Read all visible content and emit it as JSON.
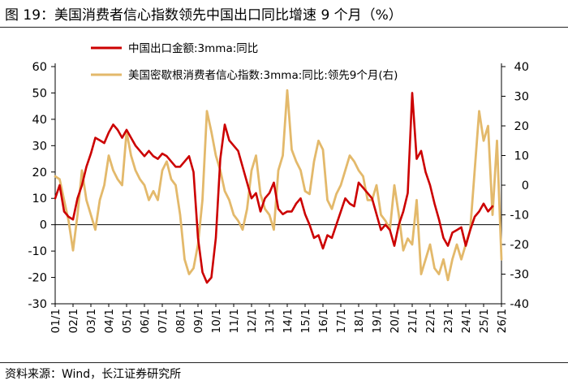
{
  "header": {
    "title": "图 19：美国消费者信心指数领先中国出口同比增速 9 个月（%）"
  },
  "footer": {
    "source": "资料来源：Wind，长江证券研究所"
  },
  "chart_data": {
    "type": "line",
    "colors": {
      "china_exports": "#cc0000",
      "us_confidence": "#e3b96b"
    },
    "legend": {
      "placement": "top-center",
      "entries": [
        "中国出口金额:3mma:同比",
        "美国密歇根消费者信心指数:3mma:同比:领先9个月(右)"
      ]
    },
    "x_tick_labels": [
      "01/1",
      "02/1",
      "03/1",
      "04/1",
      "05/1",
      "06/1",
      "07/1",
      "08/1",
      "09/1",
      "10/1",
      "11/1",
      "12/1",
      "13/1",
      "14/1",
      "15/1",
      "16/1",
      "17/1",
      "18/1",
      "19/1",
      "20/1",
      "21/1",
      "22/1",
      "23/1",
      "24/1",
      "25/1",
      "26/1"
    ],
    "y_left": {
      "ticks": [
        -30,
        -20,
        -10,
        0,
        10,
        20,
        30,
        40,
        50,
        60
      ],
      "range": [
        -30,
        60
      ]
    },
    "y_right": {
      "ticks": [
        -40,
        -30,
        -20,
        -10,
        0,
        10,
        20,
        30,
        40
      ],
      "range": [
        -40,
        40
      ]
    },
    "series": [
      {
        "name": "中国出口金额:3mma:同比",
        "axis": "left",
        "x": [
          2001.0,
          2001.25,
          2001.5,
          2001.75,
          2002.0,
          2002.25,
          2002.5,
          2002.75,
          2003.0,
          2003.25,
          2003.5,
          2003.75,
          2004.0,
          2004.25,
          2004.5,
          2004.75,
          2005.0,
          2005.25,
          2005.5,
          2005.75,
          2006.0,
          2006.25,
          2006.5,
          2006.75,
          2007.0,
          2007.25,
          2007.5,
          2007.75,
          2008.0,
          2008.25,
          2008.5,
          2008.75,
          2009.0,
          2009.25,
          2009.5,
          2009.75,
          2010.0,
          2010.25,
          2010.5,
          2010.75,
          2011.0,
          2011.25,
          2011.5,
          2011.75,
          2012.0,
          2012.25,
          2012.5,
          2012.75,
          2013.0,
          2013.25,
          2013.5,
          2013.75,
          2014.0,
          2014.25,
          2014.5,
          2014.75,
          2015.0,
          2015.25,
          2015.5,
          2015.75,
          2016.0,
          2016.25,
          2016.5,
          2016.75,
          2017.0,
          2017.25,
          2017.5,
          2017.75,
          2018.0,
          2018.25,
          2018.5,
          2018.75,
          2019.0,
          2019.25,
          2019.5,
          2019.75,
          2020.0,
          2020.25,
          2020.5,
          2020.75,
          2021.0,
          2021.25,
          2021.5,
          2021.75,
          2022.0,
          2022.25,
          2022.5,
          2022.75,
          2023.0,
          2023.25,
          2023.5,
          2023.75,
          2024.0,
          2024.25,
          2024.5,
          2024.75,
          2025.0,
          2025.25,
          2025.5
        ],
        "values": [
          10,
          15,
          5,
          3,
          2,
          10,
          15,
          22,
          27,
          33,
          32,
          31,
          35,
          38,
          36,
          33,
          36,
          33,
          30,
          28,
          26,
          28,
          26,
          25,
          27,
          26,
          24,
          22,
          22,
          24,
          26,
          20,
          -5,
          -18,
          -22,
          -20,
          -5,
          25,
          38,
          32,
          30,
          28,
          22,
          16,
          10,
          12,
          5,
          10,
          12,
          16,
          6,
          4,
          5,
          5,
          8,
          10,
          4,
          0,
          -5,
          -4,
          -9,
          -4,
          -5,
          0,
          5,
          10,
          8,
          7,
          16,
          14,
          12,
          10,
          4,
          -2,
          0,
          -2,
          -8,
          0,
          5,
          12,
          50,
          25,
          28,
          20,
          15,
          8,
          2,
          -5,
          -8,
          -3,
          -2,
          -1,
          -8,
          -2,
          3,
          5,
          8,
          5,
          7
        ]
      },
      {
        "name": "美国密歇根消费者信心指数:3mma:同比:领先9个月(右)",
        "axis": "right",
        "x": [
          2001.0,
          2001.25,
          2001.5,
          2001.75,
          2002.0,
          2002.25,
          2002.5,
          2002.75,
          2003.0,
          2003.25,
          2003.5,
          2003.75,
          2004.0,
          2004.25,
          2004.5,
          2004.75,
          2005.0,
          2005.25,
          2005.5,
          2005.75,
          2006.0,
          2006.25,
          2006.5,
          2006.75,
          2007.0,
          2007.25,
          2007.5,
          2007.75,
          2008.0,
          2008.25,
          2008.5,
          2008.75,
          2009.0,
          2009.25,
          2009.5,
          2009.75,
          2010.0,
          2010.25,
          2010.5,
          2010.75,
          2011.0,
          2011.25,
          2011.5,
          2011.75,
          2012.0,
          2012.25,
          2012.5,
          2012.75,
          2013.0,
          2013.25,
          2013.5,
          2013.75,
          2014.0,
          2014.25,
          2014.5,
          2014.75,
          2015.0,
          2015.25,
          2015.5,
          2015.75,
          2016.0,
          2016.25,
          2016.5,
          2016.75,
          2017.0,
          2017.25,
          2017.5,
          2017.75,
          2018.0,
          2018.25,
          2018.5,
          2018.75,
          2019.0,
          2019.25,
          2019.5,
          2019.75,
          2020.0,
          2020.25,
          2020.5,
          2020.75,
          2021.0,
          2021.25,
          2021.5,
          2021.75,
          2022.0,
          2022.25,
          2022.5,
          2022.75,
          2023.0,
          2023.25,
          2023.5,
          2023.75,
          2024.0,
          2024.25,
          2024.5,
          2024.75,
          2025.0,
          2025.25,
          2025.5,
          2025.75,
          2026.0
        ],
        "values": [
          3,
          2,
          -5,
          -12,
          -22,
          -10,
          5,
          -5,
          -10,
          -15,
          -5,
          0,
          10,
          5,
          2,
          0,
          18,
          10,
          5,
          2,
          0,
          -5,
          -2,
          -5,
          5,
          8,
          2,
          0,
          -10,
          -25,
          -30,
          -28,
          -20,
          -5,
          25,
          18,
          10,
          5,
          -2,
          -5,
          -10,
          -12,
          -15,
          -8,
          5,
          10,
          -3,
          -8,
          -10,
          -15,
          5,
          10,
          32,
          12,
          8,
          5,
          -2,
          -3,
          8,
          15,
          12,
          -5,
          -8,
          -3,
          0,
          5,
          10,
          8,
          5,
          3,
          -5,
          -5,
          0,
          -10,
          -12,
          -15,
          0,
          -10,
          -22,
          -18,
          -20,
          -5,
          -30,
          -25,
          -20,
          -28,
          -30,
          -25,
          -32,
          -25,
          -20,
          -25,
          -20,
          -15,
          5,
          25,
          15,
          20,
          -10,
          15,
          -25
        ]
      }
    ]
  }
}
